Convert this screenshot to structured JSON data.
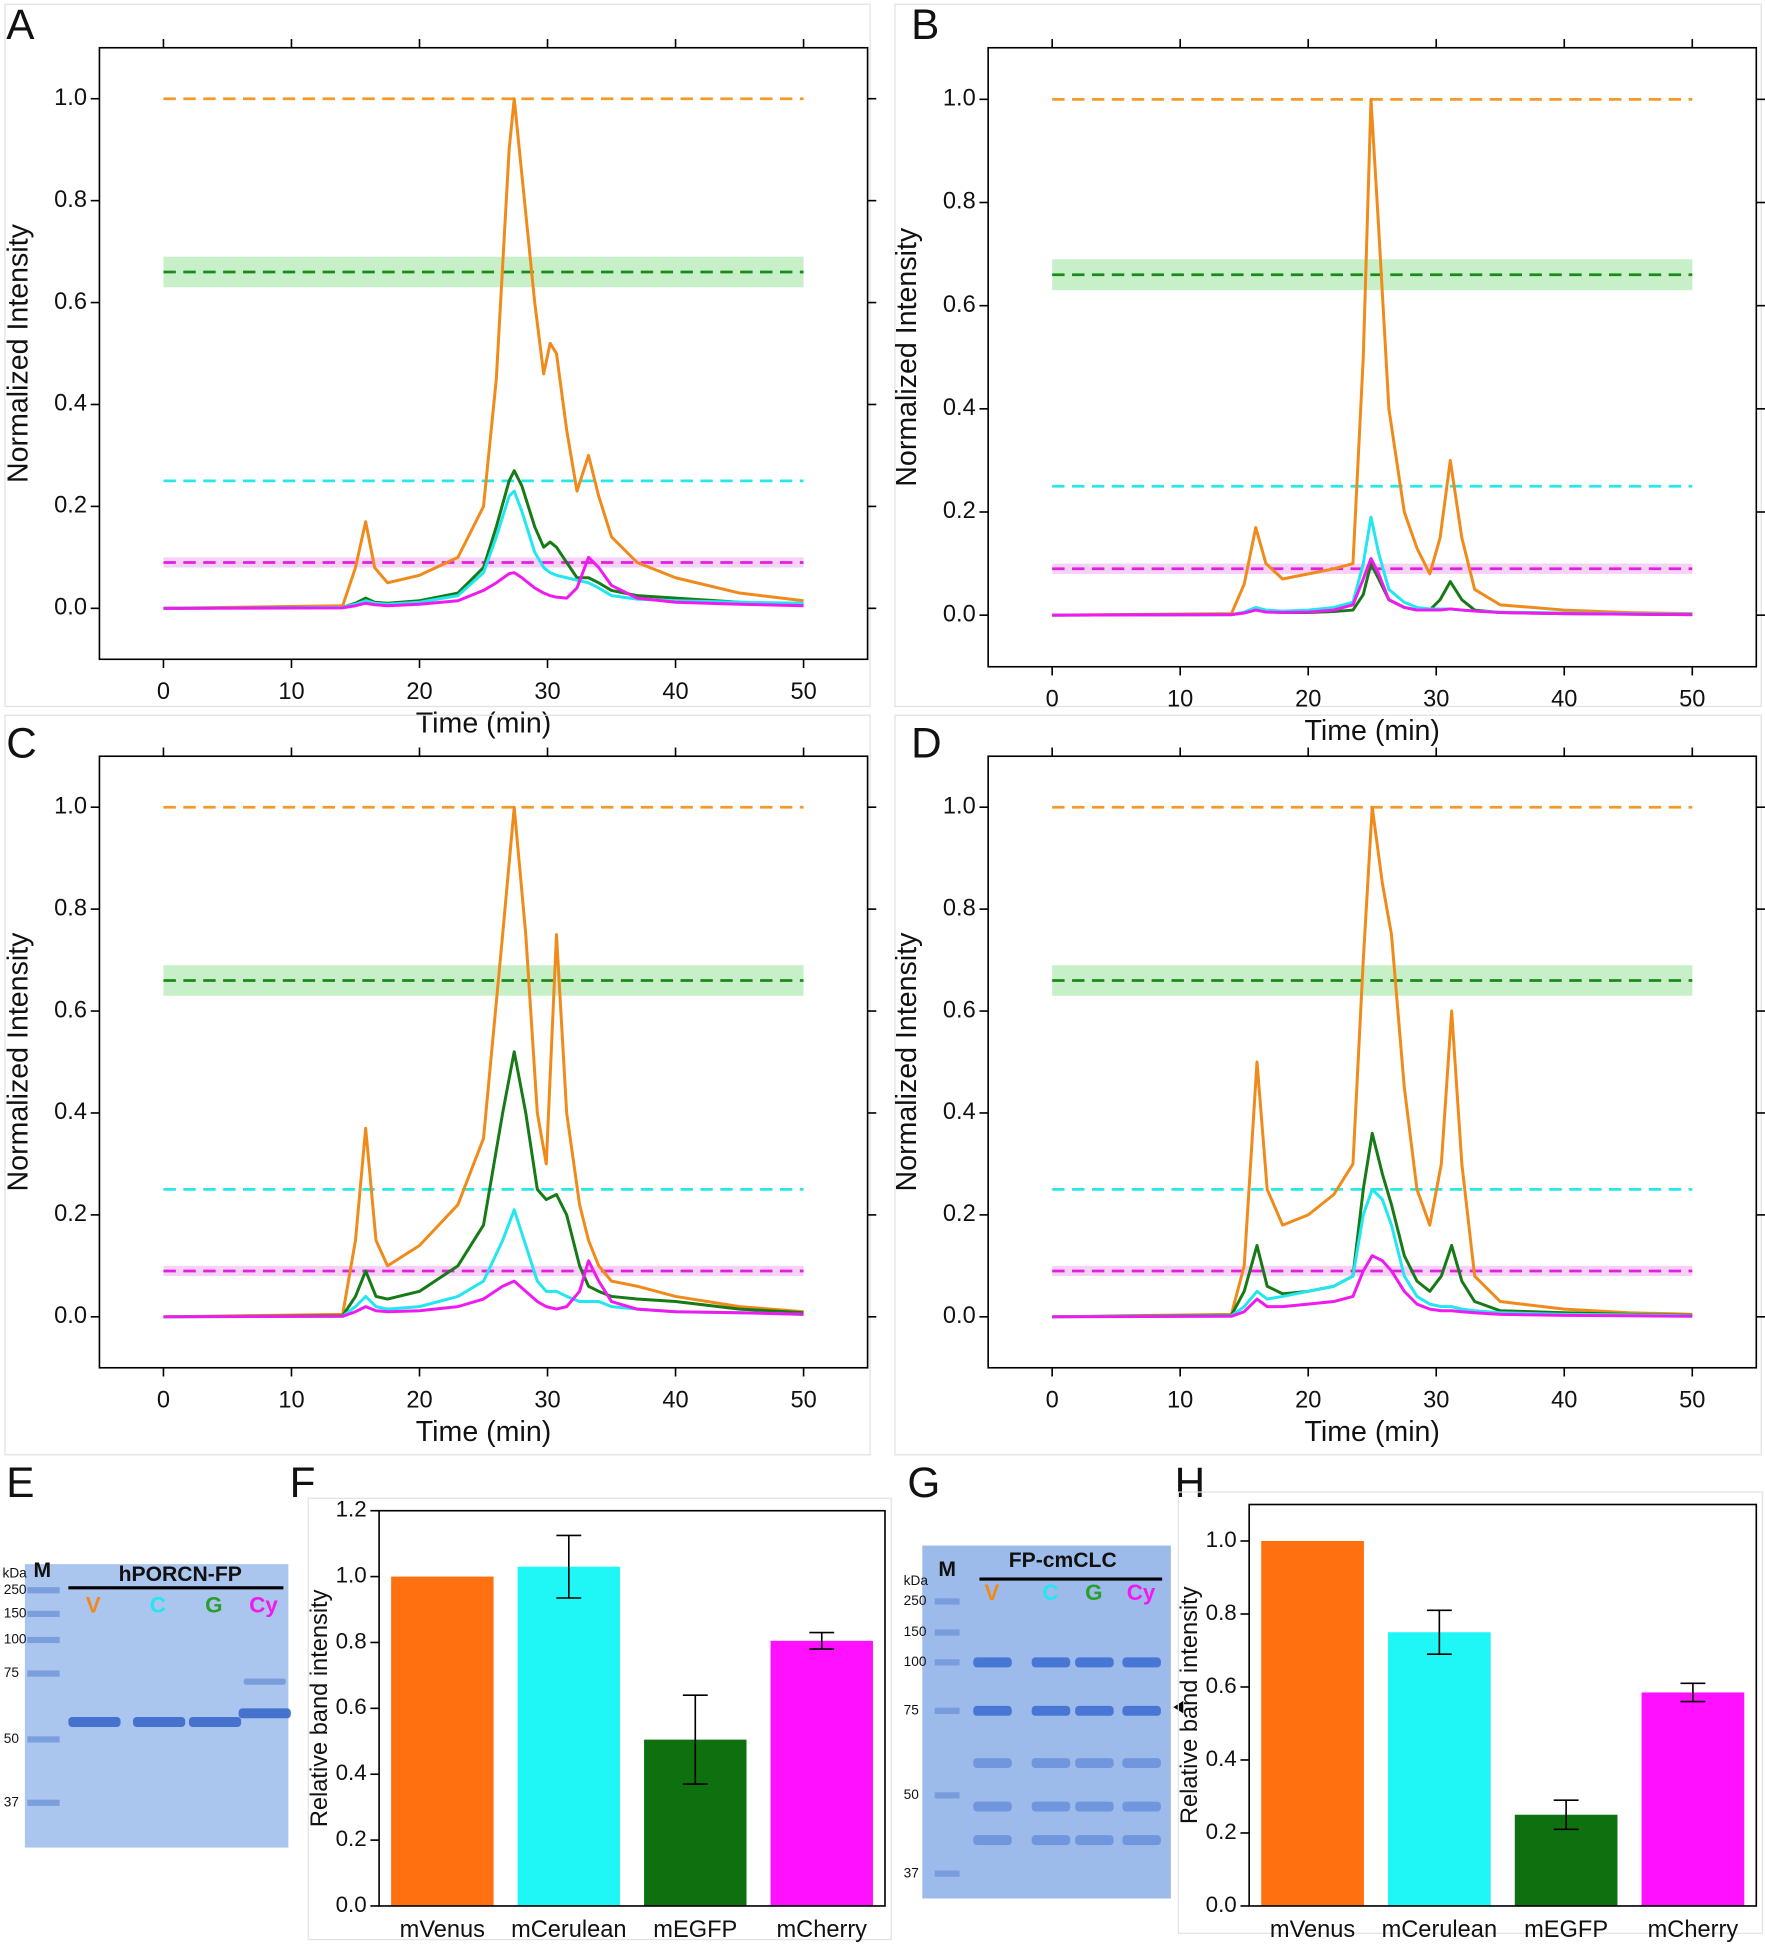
{
  "chart_data": [
    {
      "type": "line",
      "panel": "A",
      "ylabel": "Normalized Intensity",
      "xlabel": "Time (min)",
      "xlim": [
        -5,
        55
      ],
      "ylim": [
        -0.1,
        1.1
      ],
      "xticks": [
        0,
        10,
        20,
        30,
        40,
        50
      ],
      "yticks": [
        {
          "value": 0,
          "label": "0.0"
        },
        0.2,
        0.4,
        0.6,
        0.8,
        {
          "value": 1,
          "label": "1.0"
        }
      ],
      "hline_span": [
        0,
        50
      ],
      "hlines": [
        {
          "value": 1.0,
          "color": "#f59a28"
        },
        {
          "value": 0.66,
          "color": "#1a8a1a",
          "band": [
            0.63,
            0.69
          ],
          "band_color": "#c8f0c8"
        },
        {
          "value": 0.25,
          "color": "#27e8e8"
        },
        {
          "value": 0.09,
          "color": "#e020e0",
          "band": [
            0.08,
            0.1
          ],
          "band_color": "#f6d2f6"
        }
      ],
      "x": [
        0,
        14,
        15,
        15.8,
        16.5,
        17.5,
        20,
        23,
        25,
        26,
        27,
        27.4,
        28,
        29,
        29.7,
        30.2,
        30.7,
        31.5,
        32.3,
        33.2,
        34,
        35,
        37,
        40,
        45,
        50
      ],
      "series": [
        {
          "color": "#f08a1a",
          "values": [
            0,
            0.005,
            0.08,
            0.17,
            0.08,
            0.05,
            0.065,
            0.1,
            0.2,
            0.45,
            0.9,
            1.0,
            0.85,
            0.6,
            0.46,
            0.52,
            0.5,
            0.35,
            0.23,
            0.3,
            0.22,
            0.14,
            0.09,
            0.06,
            0.03,
            0.015
          ]
        },
        {
          "color": "#167a16",
          "values": [
            0,
            0.002,
            0.01,
            0.02,
            0.012,
            0.01,
            0.015,
            0.03,
            0.08,
            0.16,
            0.25,
            0.27,
            0.24,
            0.16,
            0.12,
            0.13,
            0.12,
            0.09,
            0.06,
            0.06,
            0.05,
            0.035,
            0.025,
            0.02,
            0.012,
            0.008
          ]
        },
        {
          "color": "#22e6f0",
          "values": [
            0,
            0.002,
            0.008,
            0.015,
            0.01,
            0.008,
            0.012,
            0.025,
            0.07,
            0.14,
            0.22,
            0.23,
            0.19,
            0.11,
            0.08,
            0.07,
            0.065,
            0.06,
            0.055,
            0.05,
            0.04,
            0.025,
            0.018,
            0.015,
            0.012,
            0.01
          ]
        },
        {
          "color": "#f01af0",
          "values": [
            0,
            0.001,
            0.005,
            0.01,
            0.007,
            0.005,
            0.008,
            0.015,
            0.035,
            0.05,
            0.068,
            0.07,
            0.06,
            0.04,
            0.03,
            0.025,
            0.022,
            0.02,
            0.04,
            0.1,
            0.08,
            0.045,
            0.02,
            0.012,
            0.008,
            0.005
          ]
        }
      ]
    },
    {
      "type": "line",
      "panel": "B",
      "ylabel": "Normalized Intensity",
      "xlabel": "Time (min)",
      "xlim": [
        -5,
        55
      ],
      "ylim": [
        -0.1,
        1.1
      ],
      "xticks": [
        0,
        10,
        20,
        30,
        40,
        50
      ],
      "yticks": [
        {
          "value": 0,
          "label": "0.0"
        },
        0.2,
        0.4,
        0.6,
        0.8,
        {
          "value": 1,
          "label": "1.0"
        }
      ],
      "hline_span": [
        0,
        50
      ],
      "hlines": [
        {
          "value": 1.0,
          "color": "#f59a28"
        },
        {
          "value": 0.66,
          "color": "#1a8a1a",
          "band": [
            0.63,
            0.69
          ],
          "band_color": "#c8f0c8"
        },
        {
          "value": 0.25,
          "color": "#27e8e8"
        },
        {
          "value": 0.09,
          "color": "#e020e0",
          "band": [
            0.08,
            0.1
          ],
          "band_color": "#f6d2f6"
        }
      ],
      "x": [
        0,
        14,
        15,
        15.9,
        16.7,
        18,
        20,
        22,
        23.5,
        24.3,
        24.9,
        25.5,
        26.3,
        27.5,
        28.5,
        29.5,
        30.3,
        31.1,
        32,
        33,
        35,
        40,
        45,
        50
      ],
      "series": [
        {
          "color": "#f08a1a",
          "values": [
            0,
            0.003,
            0.06,
            0.17,
            0.1,
            0.07,
            0.08,
            0.09,
            0.1,
            0.5,
            1.0,
            0.75,
            0.4,
            0.2,
            0.13,
            0.08,
            0.15,
            0.3,
            0.15,
            0.05,
            0.02,
            0.01,
            0.005,
            0.003
          ]
        },
        {
          "color": "#167a16",
          "values": [
            0,
            0.001,
            0.005,
            0.012,
            0.008,
            0.005,
            0.005,
            0.007,
            0.01,
            0.04,
            0.1,
            0.07,
            0.03,
            0.015,
            0.01,
            0.01,
            0.03,
            0.065,
            0.03,
            0.01,
            0.005,
            0.003,
            0.002,
            0.001
          ]
        },
        {
          "color": "#22e6f0",
          "values": [
            0,
            0.001,
            0.006,
            0.015,
            0.01,
            0.008,
            0.01,
            0.015,
            0.025,
            0.1,
            0.19,
            0.12,
            0.05,
            0.025,
            0.015,
            0.012,
            0.012,
            0.012,
            0.01,
            0.008,
            0.006,
            0.004,
            0.003,
            0.002
          ]
        },
        {
          "color": "#f01af0",
          "values": [
            0,
            0.001,
            0.004,
            0.01,
            0.006,
            0.005,
            0.006,
            0.01,
            0.02,
            0.07,
            0.11,
            0.08,
            0.03,
            0.015,
            0.01,
            0.01,
            0.01,
            0.012,
            0.01,
            0.008,
            0.005,
            0.003,
            0.002,
            0.001
          ]
        }
      ]
    },
    {
      "type": "line",
      "panel": "C",
      "ylabel": "Normalized Intensity",
      "xlabel": "Time (min)",
      "xlim": [
        -5,
        55
      ],
      "ylim": [
        -0.1,
        1.1
      ],
      "xticks": [
        0,
        10,
        20,
        30,
        40,
        50
      ],
      "yticks": [
        {
          "value": 0,
          "label": "0.0"
        },
        0.2,
        0.4,
        0.6,
        0.8,
        {
          "value": 1,
          "label": "1.0"
        }
      ],
      "hline_span": [
        0,
        50
      ],
      "hlines": [
        {
          "value": 1.0,
          "color": "#f59a28"
        },
        {
          "value": 0.66,
          "color": "#1a8a1a",
          "band": [
            0.63,
            0.69
          ],
          "band_color": "#c8f0c8"
        },
        {
          "value": 0.25,
          "color": "#27e8e8"
        },
        {
          "value": 0.09,
          "color": "#e020e0",
          "band": [
            0.08,
            0.1
          ],
          "band_color": "#f6d2f6"
        }
      ],
      "x": [
        0,
        14,
        15,
        15.8,
        16.6,
        17.5,
        20,
        23,
        25,
        26.5,
        27.4,
        28.3,
        29.2,
        29.9,
        30.7,
        31.5,
        32.5,
        33.2,
        34,
        35,
        37,
        40,
        45,
        50
      ],
      "series": [
        {
          "color": "#f08a1a",
          "values": [
            0,
            0.005,
            0.15,
            0.37,
            0.15,
            0.1,
            0.14,
            0.22,
            0.35,
            0.75,
            1.0,
            0.75,
            0.4,
            0.3,
            0.75,
            0.4,
            0.22,
            0.15,
            0.1,
            0.07,
            0.06,
            0.04,
            0.02,
            0.01
          ]
        },
        {
          "color": "#167a16",
          "values": [
            0,
            0.002,
            0.04,
            0.09,
            0.04,
            0.035,
            0.05,
            0.1,
            0.18,
            0.4,
            0.52,
            0.4,
            0.25,
            0.23,
            0.24,
            0.2,
            0.1,
            0.06,
            0.05,
            0.04,
            0.035,
            0.03,
            0.015,
            0.008
          ]
        },
        {
          "color": "#22e6f0",
          "values": [
            0,
            0.001,
            0.02,
            0.04,
            0.02,
            0.015,
            0.02,
            0.04,
            0.07,
            0.15,
            0.21,
            0.14,
            0.07,
            0.05,
            0.05,
            0.04,
            0.03,
            0.03,
            0.03,
            0.02,
            0.015,
            0.01,
            0.008,
            0.005
          ]
        },
        {
          "color": "#f01af0",
          "values": [
            0,
            0.001,
            0.01,
            0.02,
            0.012,
            0.01,
            0.012,
            0.02,
            0.035,
            0.06,
            0.07,
            0.05,
            0.03,
            0.02,
            0.015,
            0.02,
            0.05,
            0.11,
            0.07,
            0.03,
            0.015,
            0.01,
            0.008,
            0.005
          ]
        }
      ]
    },
    {
      "type": "line",
      "panel": "D",
      "ylabel": "Normalized Intensity",
      "xlabel": "Time (min)",
      "xlim": [
        -5,
        55
      ],
      "ylim": [
        -0.1,
        1.1
      ],
      "xticks": [
        0,
        10,
        20,
        30,
        40,
        50
      ],
      "yticks": [
        {
          "value": 0,
          "label": "0.0"
        },
        0.2,
        0.4,
        0.6,
        0.8,
        {
          "value": 1,
          "label": "1.0"
        }
      ],
      "hline_span": [
        0,
        50
      ],
      "hlines": [
        {
          "value": 1.0,
          "color": "#f59a28"
        },
        {
          "value": 0.66,
          "color": "#1a8a1a",
          "band": [
            0.63,
            0.69
          ],
          "band_color": "#c8f0c8"
        },
        {
          "value": 0.25,
          "color": "#27e8e8"
        },
        {
          "value": 0.09,
          "color": "#e020e0",
          "band": [
            0.08,
            0.1
          ],
          "band_color": "#f6d2f6"
        }
      ],
      "x": [
        0,
        14,
        15,
        16,
        16.8,
        18,
        20,
        22,
        23.5,
        24.3,
        25,
        25.8,
        26.5,
        27.5,
        28.5,
        29.5,
        30.4,
        31.2,
        32,
        33,
        35,
        40,
        45,
        50
      ],
      "series": [
        {
          "color": "#f08a1a",
          "values": [
            0,
            0.005,
            0.1,
            0.5,
            0.25,
            0.18,
            0.2,
            0.24,
            0.3,
            0.7,
            1.0,
            0.85,
            0.75,
            0.45,
            0.25,
            0.18,
            0.3,
            0.6,
            0.3,
            0.08,
            0.03,
            0.015,
            0.008,
            0.005
          ]
        },
        {
          "color": "#167a16",
          "values": [
            0,
            0.003,
            0.05,
            0.14,
            0.06,
            0.045,
            0.05,
            0.06,
            0.08,
            0.25,
            0.36,
            0.28,
            0.22,
            0.12,
            0.07,
            0.05,
            0.08,
            0.14,
            0.07,
            0.03,
            0.012,
            0.008,
            0.005,
            0.003
          ]
        },
        {
          "color": "#22e6f0",
          "values": [
            0,
            0.002,
            0.02,
            0.05,
            0.035,
            0.04,
            0.05,
            0.06,
            0.08,
            0.2,
            0.25,
            0.23,
            0.18,
            0.08,
            0.04,
            0.025,
            0.02,
            0.02,
            0.015,
            0.012,
            0.008,
            0.005,
            0.004,
            0.002
          ]
        },
        {
          "color": "#f01af0",
          "values": [
            0,
            0.001,
            0.01,
            0.035,
            0.02,
            0.02,
            0.025,
            0.03,
            0.04,
            0.09,
            0.12,
            0.11,
            0.09,
            0.05,
            0.025,
            0.015,
            0.012,
            0.012,
            0.01,
            0.008,
            0.005,
            0.003,
            0.002,
            0.001
          ]
        }
      ]
    },
    {
      "type": "gel",
      "panel": "E",
      "marker": "M",
      "unit": "kDa",
      "marker_labels": [
        250,
        150,
        100,
        75,
        50,
        37
      ],
      "title": "hPORCN-FP",
      "lanes": [
        "V",
        "C",
        "G",
        "Cy"
      ],
      "lane_colors": [
        "#f08a1a",
        "#22e6f0",
        "#2aa02a",
        "#f01af0"
      ]
    },
    {
      "type": "bar",
      "panel": "F",
      "ylabel": "Relative band intensity",
      "categories": [
        "mVenus",
        "mCerulean",
        "mEGFP",
        "mCherry"
      ],
      "values": [
        1.0,
        1.03,
        0.505,
        0.805
      ],
      "errors": [
        null,
        0.095,
        0.135,
        0.025
      ],
      "colors": [
        "#ff7010",
        "#1ff7f7",
        "#0e700e",
        "#ff10ff"
      ],
      "ylim": [
        0,
        1.2
      ],
      "yticks": [
        {
          "value": 0,
          "label": "0.0"
        },
        0.2,
        0.4,
        0.6,
        0.8,
        {
          "value": 1,
          "label": "1.0"
        },
        1.2
      ]
    },
    {
      "type": "gel",
      "panel": "G",
      "marker": "M",
      "unit": "kDa",
      "marker_labels": [
        250,
        150,
        100,
        75,
        50,
        37
      ],
      "title": "FP-cmCLC",
      "lanes": [
        "V",
        "C",
        "G",
        "Cy"
      ],
      "lane_colors": [
        "#f08a1a",
        "#22e6f0",
        "#2aa02a",
        "#f01af0"
      ]
    },
    {
      "type": "bar",
      "panel": "H",
      "ylabel": "Relative band intensity",
      "categories": [
        "mVenus",
        "mCerulean",
        "mEGFP",
        "mCherry"
      ],
      "values": [
        1.0,
        0.75,
        0.25,
        0.585
      ],
      "errors": [
        null,
        0.06,
        0.04,
        0.025
      ],
      "colors": [
        "#ff7010",
        "#1ff7f7",
        "#0e700e",
        "#ff10ff"
      ],
      "ylim": [
        0,
        1.1
      ],
      "yticks": [
        {
          "value": 0,
          "label": "0.0"
        },
        0.2,
        0.4,
        0.6,
        0.8,
        {
          "value": 1,
          "label": "1.0"
        }
      ]
    }
  ]
}
